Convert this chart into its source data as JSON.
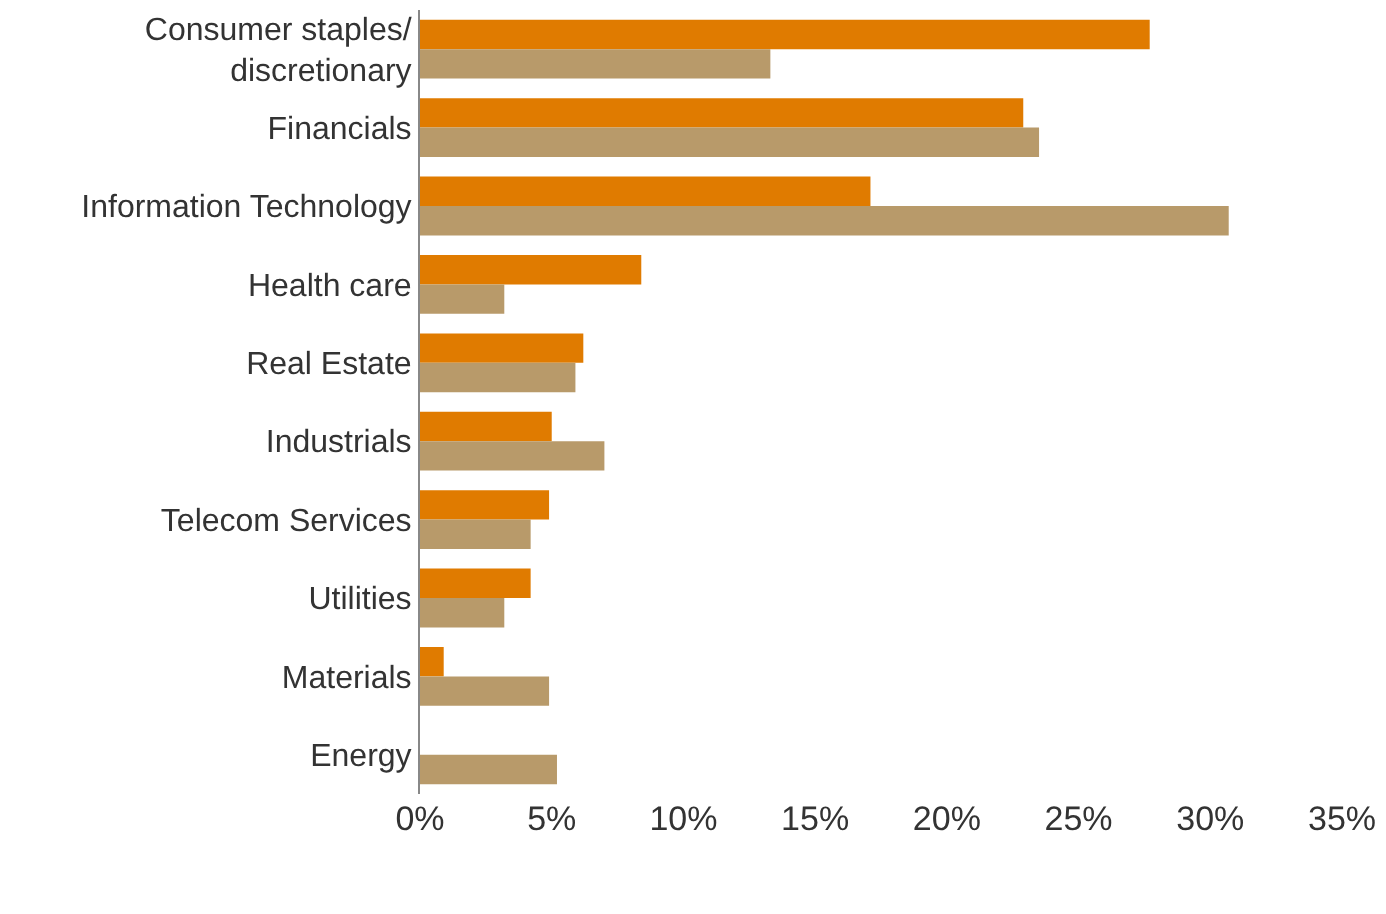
{
  "chart_data": {
    "type": "bar",
    "orientation": "horizontal",
    "categories": [
      "Consumer staples/ discretionary",
      "Financials",
      "Information Technology",
      "Health care",
      "Real Estate",
      "Industrials",
      "Telecom Services",
      "Utilities",
      "Materials",
      "Energy"
    ],
    "series": [
      {
        "color": "#e07b00",
        "values": [
          27.7,
          22.9,
          17.1,
          8.4,
          6.2,
          5.0,
          4.9,
          4.2,
          0.9,
          null
        ]
      },
      {
        "color": "#b89a6a",
        "values": [
          13.3,
          23.5,
          30.7,
          3.2,
          5.9,
          7.0,
          4.2,
          3.2,
          4.9,
          5.2
        ]
      }
    ],
    "xlim": [
      0,
      35
    ],
    "xticks": [
      {
        "value": 0,
        "label": "0%"
      },
      {
        "value": 5,
        "label": "5%"
      },
      {
        "value": 10,
        "label": "10%"
      },
      {
        "value": 15,
        "label": "15%"
      },
      {
        "value": 20,
        "label": "20%"
      },
      {
        "value": 25,
        "label": "25%"
      },
      {
        "value": 30,
        "label": "30%"
      },
      {
        "value": 35,
        "label": "35%"
      }
    ]
  }
}
